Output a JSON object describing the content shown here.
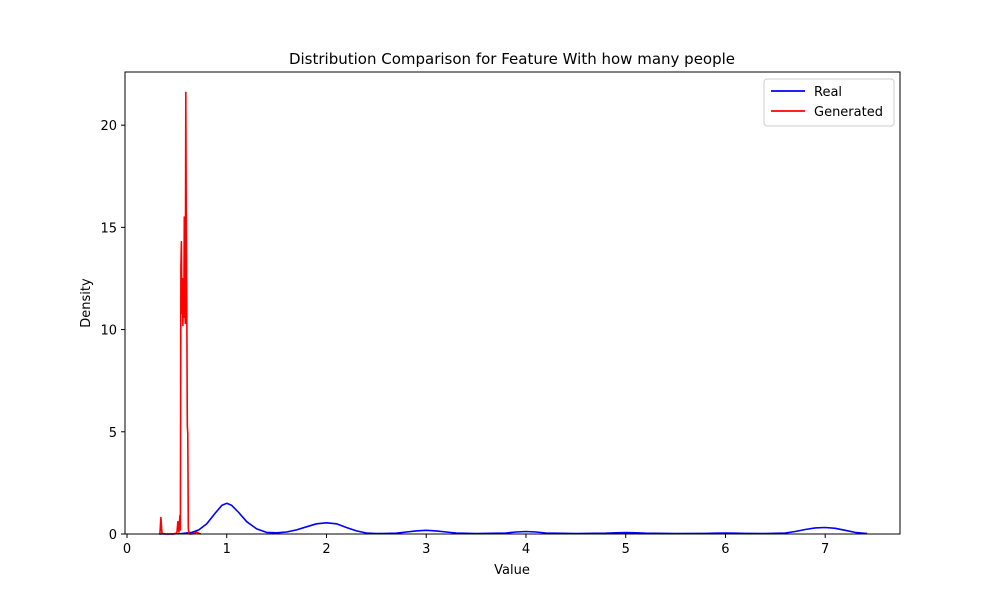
{
  "chart_data": {
    "type": "line",
    "title": "Distribution Comparison for Feature With how many people",
    "xlabel": "Value",
    "ylabel": "Density",
    "xlim": [
      -0.02,
      7.75
    ],
    "ylim": [
      0,
      22.6
    ],
    "xticks": [
      0,
      1,
      2,
      3,
      4,
      5,
      6,
      7
    ],
    "yticks": [
      0,
      5,
      10,
      15,
      20
    ],
    "grid": false,
    "legend_position": "top-right",
    "series": [
      {
        "name": "Real",
        "color": "#0000ff",
        "x": [
          0.32,
          0.45,
          0.55,
          0.65,
          0.72,
          0.8,
          0.88,
          0.95,
          1.0,
          1.05,
          1.12,
          1.2,
          1.3,
          1.4,
          1.5,
          1.6,
          1.7,
          1.8,
          1.9,
          2.0,
          2.1,
          2.2,
          2.3,
          2.4,
          2.5,
          2.7,
          2.8,
          2.9,
          3.0,
          3.1,
          3.2,
          3.3,
          3.5,
          3.8,
          3.9,
          4.0,
          4.1,
          4.2,
          4.5,
          4.8,
          4.9,
          5.0,
          5.1,
          5.2,
          5.5,
          5.8,
          5.9,
          6.0,
          6.1,
          6.2,
          6.4,
          6.6,
          6.7,
          6.8,
          6.9,
          7.0,
          7.1,
          7.2,
          7.3,
          7.42
        ],
        "y": [
          0.0,
          0.0,
          0.02,
          0.08,
          0.2,
          0.5,
          1.0,
          1.4,
          1.5,
          1.4,
          1.05,
          0.6,
          0.25,
          0.08,
          0.06,
          0.1,
          0.2,
          0.35,
          0.5,
          0.55,
          0.5,
          0.32,
          0.15,
          0.05,
          0.02,
          0.04,
          0.1,
          0.15,
          0.18,
          0.15,
          0.1,
          0.05,
          0.02,
          0.05,
          0.1,
          0.12,
          0.1,
          0.05,
          0.02,
          0.04,
          0.06,
          0.07,
          0.06,
          0.04,
          0.02,
          0.03,
          0.04,
          0.05,
          0.04,
          0.03,
          0.02,
          0.05,
          0.12,
          0.22,
          0.3,
          0.32,
          0.28,
          0.18,
          0.08,
          0.02
        ]
      },
      {
        "name": "Generated",
        "color": "#ff0000",
        "x": [
          0.33,
          0.34,
          0.35,
          0.36,
          0.38,
          0.42,
          0.46,
          0.5,
          0.51,
          0.52,
          0.53,
          0.535,
          0.54,
          0.545,
          0.55,
          0.555,
          0.56,
          0.565,
          0.57,
          0.575,
          0.58,
          0.585,
          0.59,
          0.595,
          0.6,
          0.605,
          0.61,
          0.615,
          0.62,
          0.63,
          0.65,
          0.68,
          0.7,
          0.72,
          0.74
        ],
        "y": [
          0.0,
          0.8,
          0.05,
          0.02,
          0.0,
          0.0,
          0.0,
          0.05,
          0.6,
          0.1,
          0.9,
          0.2,
          13.0,
          14.3,
          10.8,
          12.5,
          10.2,
          11.8,
          10.6,
          15.5,
          13.0,
          10.3,
          21.6,
          15.0,
          11.0,
          5.3,
          4.9,
          0.3,
          0.05,
          0.0,
          0.0,
          0.05,
          0.1,
          0.03,
          0.0
        ]
      }
    ]
  }
}
